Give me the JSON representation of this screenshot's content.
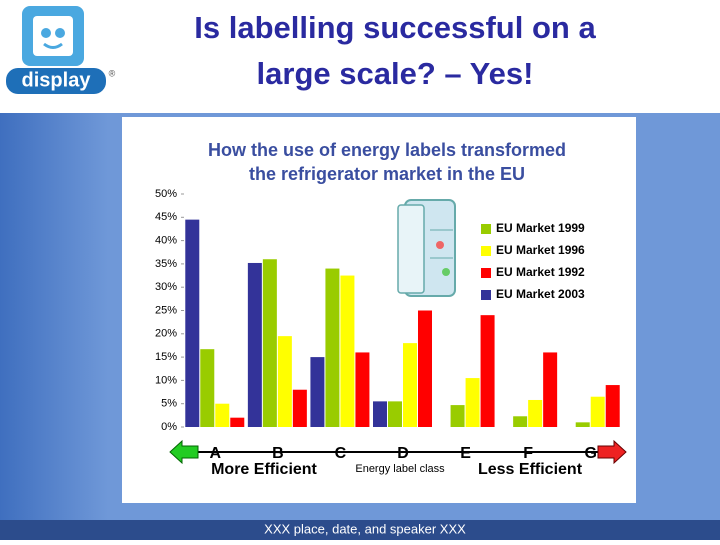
{
  "slide": {
    "logo": "display",
    "logo_mark": "®",
    "title_lines": [
      "Is labelling successful on a",
      "large scale? – Yes!"
    ],
    "footer": "XXX place, date, and speaker XXX"
  },
  "chart_data": {
    "type": "bar",
    "title_lines": [
      "How the use of energy labels transformed",
      "the refrigerator market  in the EU"
    ],
    "x_label": "Energy label class",
    "left_note": "More Efficient",
    "right_note": "Less Efficient",
    "categories": [
      "A",
      "B",
      "C",
      "D",
      "E",
      "F",
      "G"
    ],
    "series": [
      {
        "name": "EU Market 2003",
        "color": "#333399",
        "values": [
          44.5,
          35.2,
          15,
          5.5,
          0,
          0,
          0
        ]
      },
      {
        "name": "EU Market 1999",
        "color": "#99cc00",
        "values": [
          16.7,
          36,
          34,
          5.5,
          4.7,
          2.3,
          1
        ]
      },
      {
        "name": "EU Market 1996",
        "color": "#ffff00",
        "values": [
          5,
          19.5,
          32.5,
          18,
          10.5,
          5.8,
          6.5
        ]
      },
      {
        "name": "EU Market 1992",
        "color": "#ff0000",
        "values": [
          2,
          8,
          16,
          25,
          24,
          16,
          9
        ]
      }
    ],
    "legend_order": [
      1,
      2,
      3,
      0
    ],
    "ylim": [
      0,
      50
    ],
    "yticks": [
      {
        "value": 0,
        "label": "0%"
      },
      {
        "value": 5,
        "label": "5%"
      },
      {
        "value": 10,
        "label": "10%"
      },
      {
        "value": 15,
        "label": "15%"
      },
      {
        "value": 20,
        "label": "20%"
      },
      {
        "value": 25,
        "label": "25%"
      },
      {
        "value": 30,
        "label": "30%"
      },
      {
        "value": 35,
        "label": "35%"
      },
      {
        "value": 40,
        "label": "40%"
      },
      {
        "value": 45,
        "label": "45%"
      },
      {
        "value": 50,
        "label": "50%"
      }
    ],
    "grid": false
  }
}
